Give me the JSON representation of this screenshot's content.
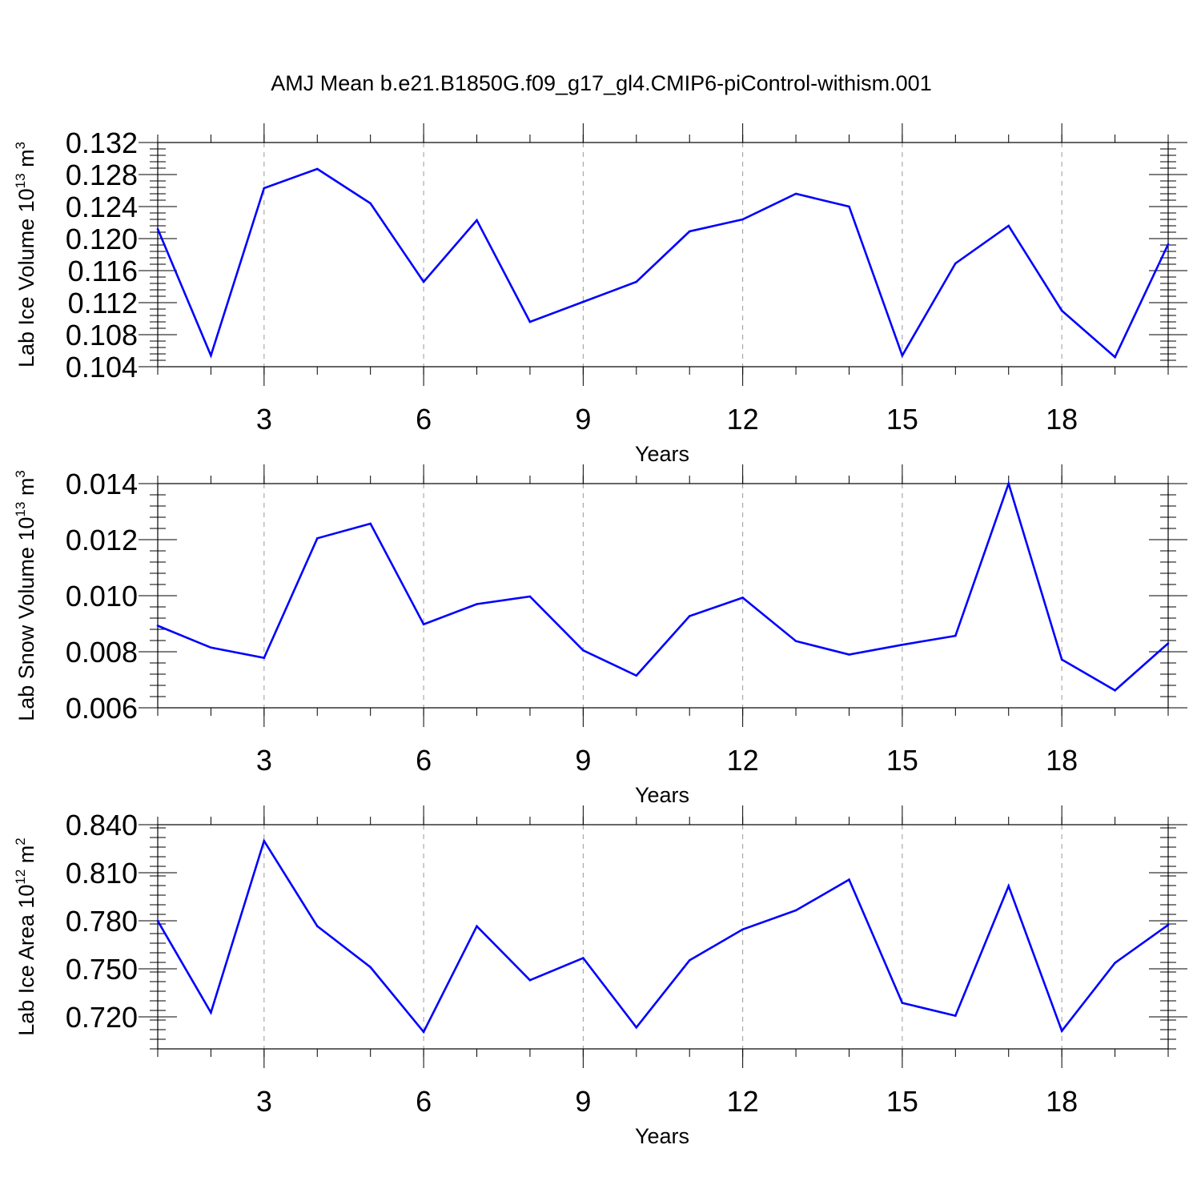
{
  "title": "AMJ Mean b.e21.B1850G.f09_g17_gl4.CMIP6-piControl-withism.001",
  "colors": {
    "line": "#0000ff",
    "axis": "#000000",
    "grid": "#999999",
    "background": "#ffffff"
  },
  "chart_data": [
    {
      "type": "line",
      "xlabel": "Years",
      "ylabel": {
        "text": "Lab Ice Volume 10",
        "exp": "13",
        "unit": " m",
        "unit_exp": "3"
      },
      "xlim": [
        1,
        20
      ],
      "ylim": [
        0.104,
        0.132
      ],
      "xticks": [
        3,
        6,
        9,
        12,
        15,
        18
      ],
      "yticks": [
        "0.104",
        "0.108",
        "0.112",
        "0.116",
        "0.120",
        "0.124",
        "0.128",
        "0.132"
      ],
      "grid": "vertical dashed at major x ticks",
      "series": [
        {
          "x": [
            1,
            2,
            3,
            4,
            5,
            6,
            7,
            8,
            9,
            10,
            11,
            12,
            13,
            14,
            15,
            16,
            17,
            18,
            19,
            20
          ],
          "values": [
            0.1212,
            0.1054,
            0.1263,
            0.1287,
            0.1244,
            0.1146,
            0.1223,
            0.1096,
            0.1121,
            0.1146,
            0.1209,
            0.1224,
            0.1256,
            0.124,
            0.1054,
            0.1169,
            0.1216,
            0.111,
            0.1052,
            0.1193
          ]
        }
      ]
    },
    {
      "type": "line",
      "xlabel": "Years",
      "ylabel": {
        "text": "Lab Snow Volume 10",
        "exp": "13",
        "unit": " m",
        "unit_exp": "3"
      },
      "xlim": [
        1,
        20
      ],
      "ylim": [
        0.006,
        0.014
      ],
      "xticks": [
        3,
        6,
        9,
        12,
        15,
        18
      ],
      "yticks": [
        "0.006",
        "0.008",
        "0.010",
        "0.012",
        "0.014"
      ],
      "grid": "vertical dashed at major x ticks",
      "series": [
        {
          "x": [
            1,
            2,
            3,
            4,
            5,
            6,
            7,
            8,
            9,
            10,
            11,
            12,
            13,
            14,
            15,
            16,
            17,
            18,
            19,
            20
          ],
          "values": [
            0.00893,
            0.00815,
            0.00778,
            0.01205,
            0.01257,
            0.00898,
            0.0097,
            0.00997,
            0.00805,
            0.00715,
            0.00927,
            0.00993,
            0.00838,
            0.0079,
            0.00825,
            0.00857,
            0.014,
            0.00772,
            0.00662,
            0.0083
          ]
        }
      ]
    },
    {
      "type": "line",
      "xlabel": "Years",
      "ylabel": {
        "text": "Lab Ice Area 10",
        "exp": "12",
        "unit": " m",
        "unit_exp": "2"
      },
      "xlim": [
        1,
        20
      ],
      "ylim": [
        0.7,
        0.84
      ],
      "xticks": [
        3,
        6,
        9,
        12,
        15,
        18
      ],
      "yticks": [
        "0.720",
        "0.750",
        "0.780",
        "0.810",
        "0.840"
      ],
      "grid": "vertical dashed at major x ticks",
      "series": [
        {
          "x": [
            1,
            2,
            3,
            4,
            5,
            6,
            7,
            8,
            9,
            10,
            11,
            12,
            13,
            14,
            15,
            16,
            17,
            18,
            19,
            20
          ],
          "values": [
            0.7799,
            0.7227,
            0.8299,
            0.7766,
            0.751,
            0.7106,
            0.7766,
            0.7429,
            0.7567,
            0.7134,
            0.7553,
            0.7746,
            0.7865,
            0.8057,
            0.7287,
            0.7207,
            0.8017,
            0.7112,
            0.7537,
            0.7774
          ]
        }
      ]
    }
  ]
}
